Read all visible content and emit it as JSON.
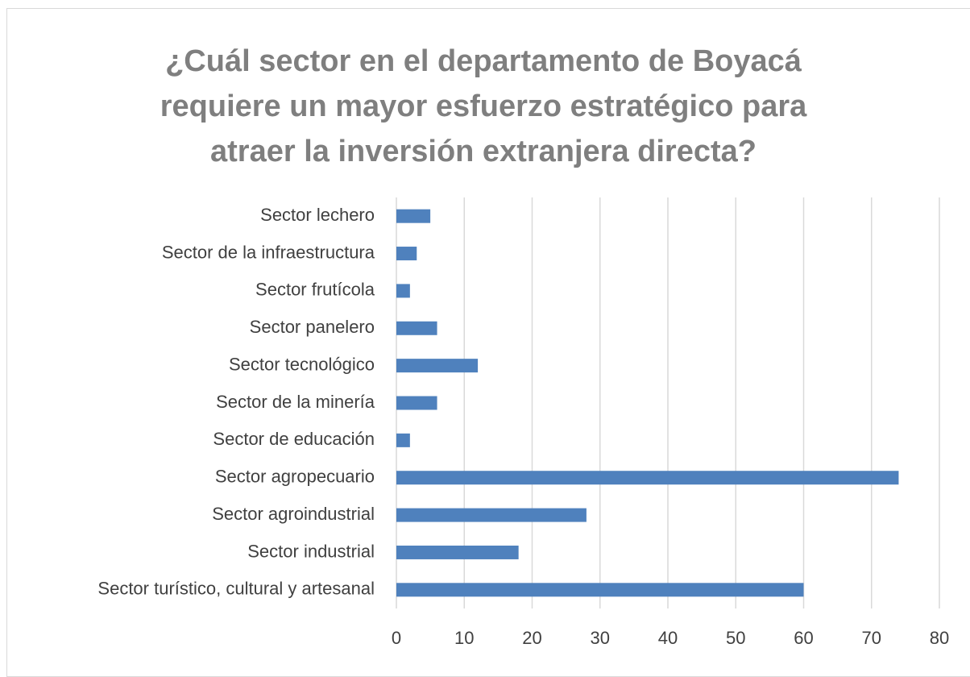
{
  "chart_data": {
    "type": "bar",
    "orientation": "horizontal",
    "title": "¿Cuál sector en el departamento de Boyacá requiere un mayor esfuerzo estratégico para atraer la inversión extranjera directa?",
    "categories": [
      "Sector lechero",
      "Sector de la infraestructura",
      "Sector frutícola",
      "Sector panelero",
      "Sector tecnológico",
      "Sector de la minería ",
      "Sector de educación ",
      "Sector agropecuario",
      "Sector agroindustrial",
      "Sector industrial",
      "Sector turístico, cultural y artesanal"
    ],
    "values": [
      5,
      3,
      2,
      6,
      12,
      6,
      2,
      74,
      28,
      18,
      60
    ],
    "color": "#4f81bd",
    "xlim": [
      0,
      80
    ],
    "xticks": [
      0,
      10,
      20,
      30,
      40,
      50,
      60,
      70,
      80
    ],
    "grid": true
  }
}
